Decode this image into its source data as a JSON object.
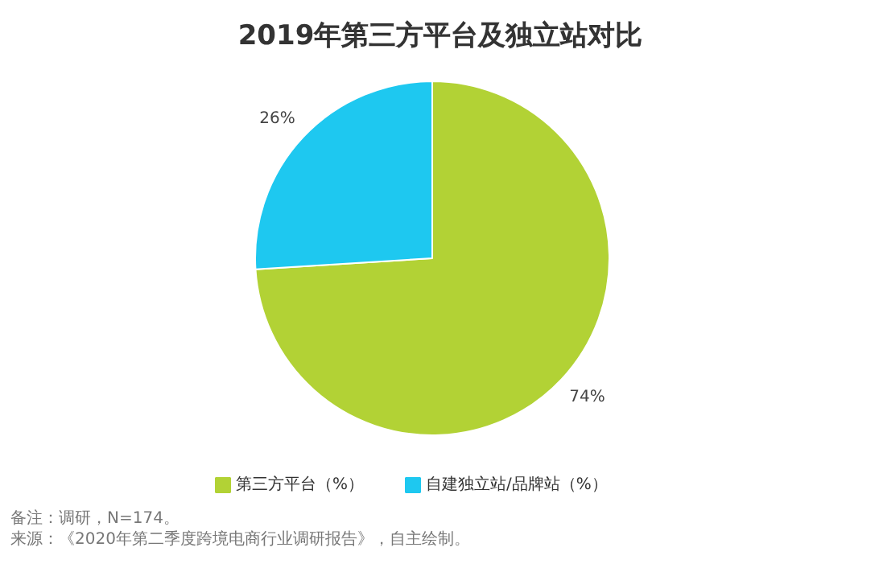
{
  "chart_data": {
    "type": "pie",
    "title": "2019年第三方平台及独立站对比",
    "categories": [
      "第三方平台（%）",
      "自建独立站/品牌站（%）"
    ],
    "values": [
      74,
      26
    ],
    "colors": [
      "#b2d235",
      "#1ec8f0"
    ],
    "value_labels": [
      "74%",
      "26%"
    ],
    "legend": "bottom",
    "annotations": [
      "备注：调研，N=174。",
      "来源：《2020年第二季度跨境电商行业调研报告》，自主绘制。"
    ]
  }
}
